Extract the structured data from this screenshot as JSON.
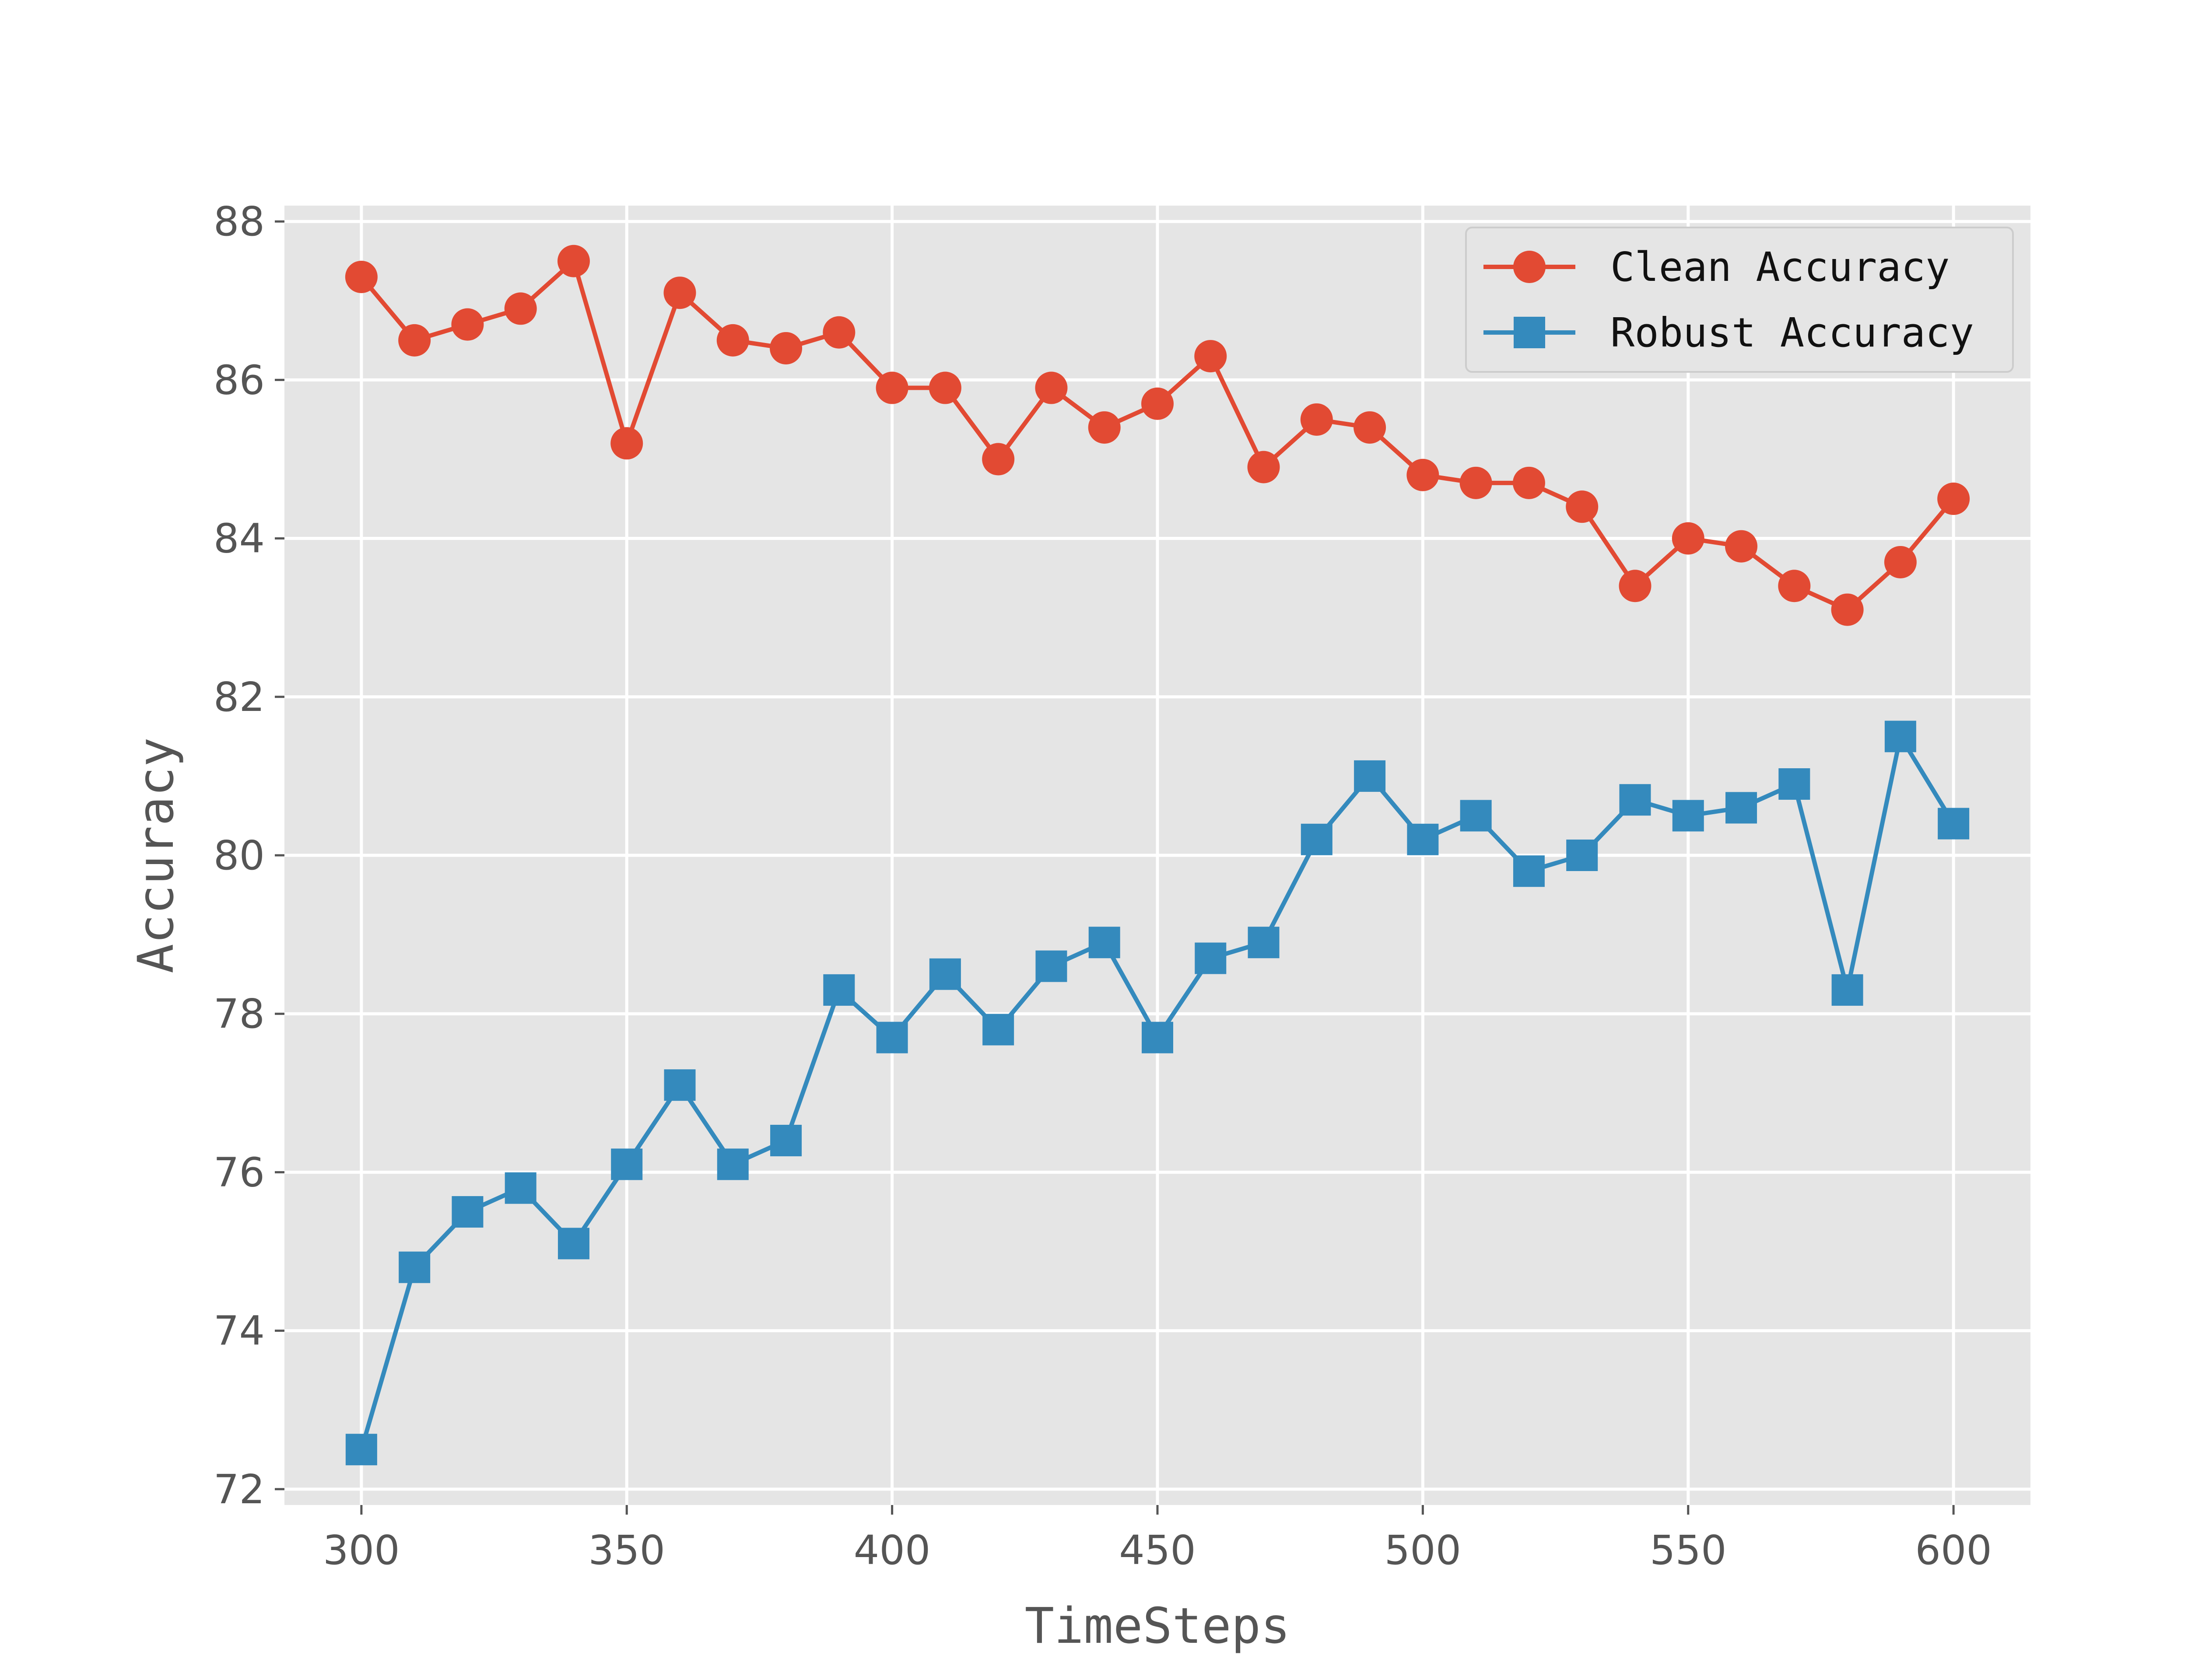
{
  "chart_data": {
    "type": "line",
    "xlabel": "TimeSteps",
    "ylabel": "Accuracy",
    "xlim": [
      285.5,
      614.5
    ],
    "ylim": [
      71.8,
      88.2
    ],
    "x_ticks": [
      300,
      350,
      400,
      450,
      500,
      550,
      600
    ],
    "y_ticks": [
      72,
      74,
      76,
      78,
      80,
      82,
      84,
      86,
      88
    ],
    "grid": true,
    "legend_position": "top-right",
    "x": [
      300,
      310,
      320,
      330,
      340,
      350,
      360,
      370,
      380,
      390,
      400,
      410,
      420,
      430,
      440,
      450,
      460,
      470,
      480,
      490,
      500,
      510,
      520,
      530,
      540,
      550,
      560,
      570,
      580,
      590,
      600
    ],
    "series": [
      {
        "name": "Clean Accuracy",
        "color": "#E24A33",
        "marker": "circle",
        "values": [
          87.3,
          86.5,
          86.7,
          86.9,
          87.5,
          85.2,
          87.1,
          86.5,
          86.4,
          86.6,
          85.9,
          85.9,
          85.0,
          85.9,
          85.4,
          85.7,
          86.3,
          84.9,
          85.5,
          85.4,
          84.8,
          84.7,
          84.7,
          84.4,
          83.4,
          84.0,
          83.9,
          83.4,
          83.1,
          83.7,
          84.5
        ]
      },
      {
        "name": "Robust Accuracy",
        "color": "#348ABD",
        "marker": "square",
        "values": [
          72.5,
          74.8,
          75.5,
          75.8,
          75.1,
          76.1,
          77.1,
          76.1,
          76.4,
          78.3,
          77.7,
          78.5,
          77.8,
          78.6,
          78.9,
          77.7,
          78.7,
          78.9,
          80.2,
          81.0,
          80.2,
          80.5,
          79.8,
          80.0,
          80.7,
          80.5,
          80.6,
          80.9,
          78.3,
          81.5,
          80.4
        ]
      }
    ]
  },
  "style": {
    "plot_background": "#E5E5E5",
    "grid_color": "#FFFFFF",
    "tick_color": "#555555"
  }
}
